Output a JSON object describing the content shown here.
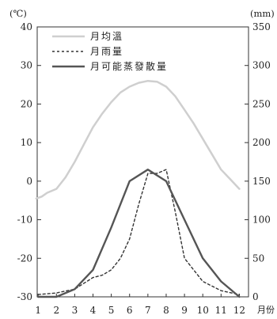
{
  "chart_data": {
    "type": "line",
    "x_ticks": [
      "1",
      "2",
      "3",
      "4",
      "5",
      "6",
      "7",
      "8",
      "9",
      "10",
      "11",
      "12"
    ],
    "x_unit_label": "月份",
    "left_axis": {
      "unit_label": "(℃)",
      "range": [
        -30,
        40
      ],
      "ticks": [
        "40",
        "30",
        "20",
        "10",
        "0",
        "-10",
        "-20",
        "-30"
      ]
    },
    "right_axis": {
      "unit_label": "(mm)",
      "range": [
        0,
        350
      ],
      "ticks": [
        "350",
        "300",
        "250",
        "200",
        "150",
        "100",
        "50",
        "0"
      ]
    },
    "legend": {
      "position": "top-left"
    },
    "series": [
      {
        "name": "月均溫",
        "axis": "left",
        "style": "solid-light",
        "color": "#c8c8c8",
        "x": [
          0.9,
          1.2,
          1.5,
          2.0,
          2.5,
          3.0,
          3.5,
          4.0,
          4.5,
          5.0,
          5.5,
          6.0,
          6.5,
          7.0,
          7.5,
          8.0,
          8.5,
          9.0,
          9.5,
          10.0,
          10.5,
          11.0,
          11.5,
          12.0
        ],
        "values": [
          -4.5,
          -4.0,
          -3.0,
          -2.0,
          1.0,
          5.0,
          9.5,
          14.0,
          17.5,
          20.5,
          23.0,
          24.5,
          25.5,
          26.0,
          25.8,
          24.5,
          22.0,
          18.5,
          15.0,
          11.0,
          7.0,
          3.0,
          0.5,
          -2.0
        ]
      },
      {
        "name": "月雨量",
        "axis": "right",
        "style": "dotted",
        "color": "#333333",
        "x": [
          1,
          2,
          3,
          4,
          4.5,
          5,
          5.5,
          6,
          6.5,
          7,
          7.5,
          8,
          8.5,
          9,
          10,
          11,
          12
        ],
        "values": [
          3,
          5,
          10,
          25,
          28,
          35,
          50,
          75,
          120,
          160,
          160,
          165,
          110,
          50,
          20,
          8,
          3
        ]
      },
      {
        "name": "月可能蒸發散量",
        "axis": "right",
        "style": "solid-dark",
        "color": "#555555",
        "x": [
          1,
          2,
          3,
          4,
          5,
          6,
          7,
          8,
          9,
          10,
          11,
          12
        ],
        "values": [
          0,
          0,
          10,
          35,
          90,
          150,
          165,
          150,
          100,
          50,
          20,
          0
        ]
      }
    ]
  }
}
